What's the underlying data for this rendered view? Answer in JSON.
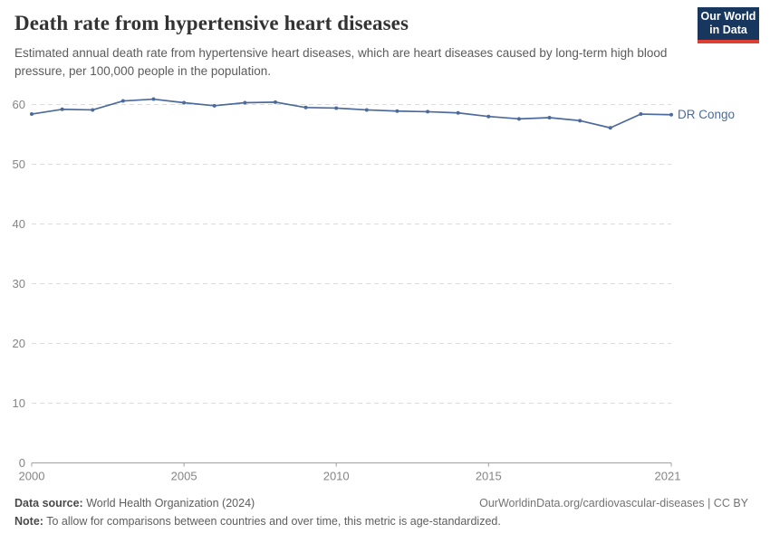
{
  "header": {
    "title": "Death rate from hypertensive heart diseases",
    "subtitle": "Estimated annual death rate from hypertensive heart diseases, which are heart diseases caused by long-term high blood pressure, per 100,000 people in the population."
  },
  "logo": {
    "line1": "Our World",
    "line2": "in Data",
    "bg_color": "#18375f",
    "accent_color": "#dc3e32"
  },
  "chart_data": {
    "type": "line",
    "title": "Death rate from hypertensive heart diseases",
    "entity_label": "DR Congo",
    "line_color": "#4C6A9C",
    "grid": "horizontal-dashed",
    "legend_position": "end-of-line",
    "xlabel": "",
    "ylabel": "",
    "ylim": [
      0,
      62
    ],
    "yticks": [
      0,
      10,
      20,
      30,
      40,
      50,
      60
    ],
    "xticks": [
      2000,
      2005,
      2010,
      2015,
      2021
    ],
    "x": [
      2000,
      2001,
      2002,
      2003,
      2004,
      2005,
      2006,
      2007,
      2008,
      2009,
      2010,
      2011,
      2012,
      2013,
      2014,
      2015,
      2016,
      2017,
      2018,
      2019,
      2020,
      2021
    ],
    "series": [
      {
        "name": "DR Congo",
        "values": [
          58.4,
          59.2,
          59.1,
          60.6,
          60.9,
          60.3,
          59.8,
          60.3,
          60.4,
          59.5,
          59.4,
          59.1,
          58.9,
          58.8,
          58.6,
          58.0,
          57.6,
          57.8,
          57.3,
          56.1,
          58.4,
          58.3
        ]
      }
    ]
  },
  "footer": {
    "data_source_label": "Data source:",
    "data_source_value": "World Health Organization (2024)",
    "link": "OurWorldinData.org/cardiovascular-diseases | CC BY",
    "note_label": "Note:",
    "note_value": "To allow for comparisons between countries and over time, this metric is age-standardized."
  },
  "colors": {
    "axis_text": "#858585",
    "gridline": "#dcdcdc",
    "axis_line": "#a0a0a0"
  }
}
